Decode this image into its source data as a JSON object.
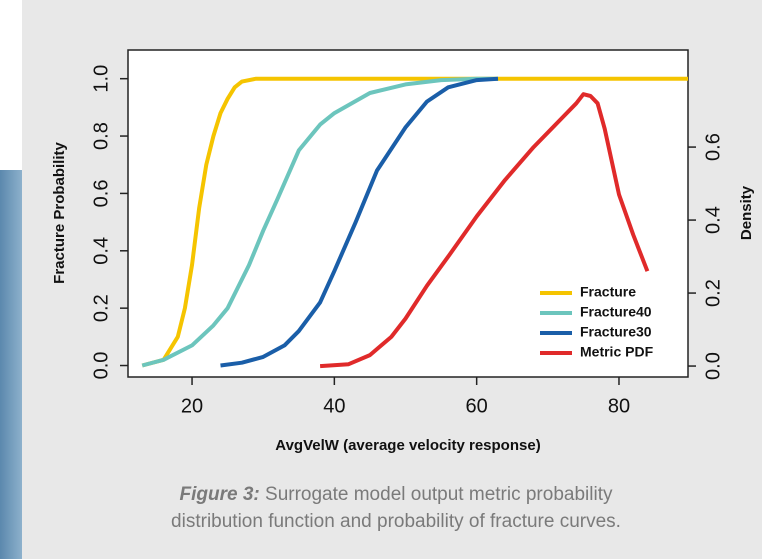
{
  "chart_data": {
    "type": "line",
    "x_label": "AvgVelW (average velocity response)",
    "y_label": "Fracture Probability",
    "y2_label": "Density",
    "xlim": [
      11,
      89.7
    ],
    "xticks": [
      20,
      40,
      60,
      80
    ],
    "ylim": [
      -0.04,
      1.1
    ],
    "yticks": [
      {
        "value": 0,
        "label": "0.0"
      },
      {
        "value": 0.2,
        "label": "0.2"
      },
      {
        "value": 0.4,
        "label": "0.4"
      },
      {
        "value": 0.6,
        "label": "0.6"
      },
      {
        "value": 0.8,
        "label": "0.8"
      },
      {
        "value": 1,
        "label": "1.0"
      }
    ],
    "y2lim": [
      -0.03,
      0.866
    ],
    "y2ticks": [
      {
        "value": 0,
        "label": "0.0"
      },
      {
        "value": 0.2,
        "label": "0.2"
      },
      {
        "value": 0.4,
        "label": "0.4"
      },
      {
        "value": 0.6,
        "label": "0.6"
      }
    ],
    "legend": "lower-right",
    "series": [
      {
        "name": "Fracture",
        "color": "#f5c400",
        "x": [
          13,
          16,
          18,
          19,
          20,
          21,
          22,
          23,
          24,
          25,
          26,
          27,
          29,
          32,
          40,
          89.7
        ],
        "values": [
          0,
          0.02,
          0.1,
          0.2,
          0.35,
          0.55,
          0.7,
          0.8,
          0.88,
          0.93,
          0.97,
          0.99,
          1,
          1,
          1,
          1
        ]
      },
      {
        "name": "Fracture40",
        "color": "#6cc5bd",
        "x": [
          13,
          16,
          20,
          23,
          25,
          28,
          30,
          32,
          35,
          38,
          40,
          45,
          50,
          55,
          60,
          63
        ],
        "values": [
          0,
          0.02,
          0.07,
          0.14,
          0.2,
          0.35,
          0.47,
          0.58,
          0.75,
          0.84,
          0.88,
          0.95,
          0.98,
          0.995,
          1,
          1
        ]
      },
      {
        "name": "Fracture30",
        "color": "#1a5ea8",
        "x": [
          24,
          27,
          30,
          33,
          35,
          38,
          40,
          43,
          46,
          50,
          53,
          56,
          60,
          63
        ],
        "values": [
          0,
          0.01,
          0.03,
          0.07,
          0.12,
          0.22,
          0.33,
          0.5,
          0.68,
          0.83,
          0.92,
          0.97,
          0.995,
          1
        ]
      },
      {
        "name": "Metric PDF",
        "color": "#e02a2a",
        "axis": "y2",
        "x": [
          38,
          42,
          45,
          48,
          50,
          53,
          56,
          60,
          64,
          68,
          72,
          74,
          75,
          76,
          77,
          78,
          80,
          82,
          84
        ],
        "values": [
          0,
          0.005,
          0.03,
          0.08,
          0.13,
          0.22,
          0.3,
          0.41,
          0.51,
          0.6,
          0.68,
          0.72,
          0.745,
          0.74,
          0.72,
          0.65,
          0.47,
          0.36,
          0.26
        ]
      }
    ]
  },
  "caption": {
    "label": "Figure 3:",
    "line1": "Surrogate model output metric probability",
    "line2": "distribution function and probability of fracture curves."
  }
}
